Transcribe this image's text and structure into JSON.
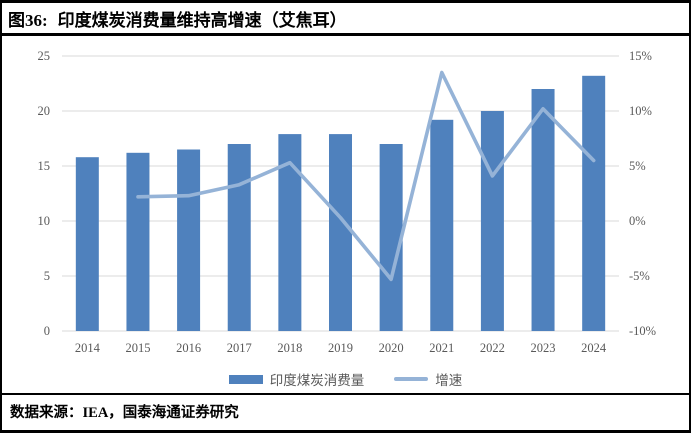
{
  "header": {
    "figure_label": "图36:",
    "title": "印度煤炭消费量维持高增速（艾焦耳）"
  },
  "footer": {
    "source": "数据来源：IEA，国泰海通证券研究"
  },
  "legend": {
    "items": [
      {
        "label": "印度煤炭消费量",
        "type": "bar",
        "color": "#4F81BD"
      },
      {
        "label": "增速",
        "type": "line",
        "color": "#95B3D7"
      }
    ]
  },
  "chart_data": {
    "type": "bar",
    "subtype": "bar+line combo, dual axis",
    "categories": [
      "2014",
      "2015",
      "2016",
      "2017",
      "2018",
      "2019",
      "2020",
      "2021",
      "2022",
      "2023",
      "2024"
    ],
    "series": [
      {
        "name": "印度煤炭消费量",
        "type": "bar",
        "axis": "left",
        "color": "#4F81BD",
        "values": [
          15.8,
          16.2,
          16.5,
          17.0,
          17.9,
          17.9,
          17.0,
          19.2,
          20.0,
          22.0,
          23.2
        ]
      },
      {
        "name": "增速",
        "type": "line",
        "axis": "right",
        "color": "#95B3D7",
        "values": [
          null,
          2.2,
          2.3,
          3.3,
          5.3,
          0.3,
          -5.3,
          13.5,
          4.1,
          10.2,
          5.5
        ]
      }
    ],
    "left_axis": {
      "min": 0,
      "max": 25,
      "step": 5,
      "ticks": [
        "0",
        "5",
        "10",
        "15",
        "20",
        "25"
      ]
    },
    "right_axis": {
      "min": -10,
      "max": 15,
      "step": 5,
      "ticks": [
        "-10%",
        "-5%",
        "0%",
        "5%",
        "10%",
        "15%"
      ]
    },
    "grid": "horizontal",
    "gridline_color": "#D9D9D9",
    "tick_color": "#595959",
    "legend_position": "bottom"
  }
}
